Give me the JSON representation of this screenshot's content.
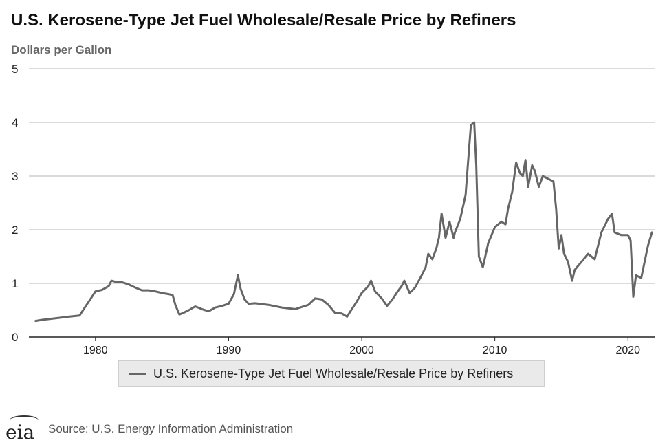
{
  "page": {
    "title": "U.S. Kerosene-Type Jet Fuel Wholesale/Resale Price by Refiners",
    "y_unit_label": "Dollars per Gallon",
    "legend_label": "U.S. Kerosene-Type Jet Fuel Wholesale/Resale Price by Refiners",
    "source": "Source: U.S. Energy Information Administration",
    "logo_text": "eia",
    "line_color": "#666666"
  },
  "chart_data": {
    "type": "line",
    "title": "U.S. Kerosene-Type Jet Fuel Wholesale/Resale Price by Refiners",
    "ylabel": "Dollars per Gallon",
    "xlabel": "",
    "ylim": [
      0,
      5
    ],
    "xlim": [
      1975,
      2022
    ],
    "yticks": [
      0,
      1,
      2,
      3,
      4,
      5
    ],
    "xticks": [
      1980,
      1990,
      2000,
      2010,
      2020
    ],
    "grid": "horizontal",
    "legend_position": "bottom",
    "series": [
      {
        "name": "U.S. Kerosene-Type Jet Fuel Wholesale/Resale Price by Refiners",
        "x": [
          1975.5,
          1976,
          1977,
          1978,
          1978.8,
          1979.2,
          1979.6,
          1980,
          1980.5,
          1981,
          1981.2,
          1981.5,
          1982,
          1982.5,
          1983,
          1983.5,
          1984,
          1984.5,
          1985,
          1985.5,
          1985.8,
          1986,
          1986.3,
          1986.6,
          1987,
          1987.5,
          1988,
          1988.5,
          1989,
          1989.5,
          1990,
          1990.4,
          1990.7,
          1990.9,
          1991.2,
          1991.5,
          1992,
          1993,
          1994,
          1995,
          1996,
          1996.5,
          1997,
          1997.5,
          1998,
          1998.5,
          1998.9,
          1999.2,
          1999.6,
          2000,
          2000.5,
          2000.7,
          2001,
          2001.5,
          2001.9,
          2002.3,
          2002.7,
          2003,
          2003.2,
          2003.6,
          2004,
          2004.5,
          2004.8,
          2005,
          2005.3,
          2005.6,
          2005.8,
          2006,
          2006.3,
          2006.6,
          2006.9,
          2007,
          2007.4,
          2007.8,
          2008,
          2008.2,
          2008.45,
          2008.6,
          2008.8,
          2008.95,
          2009.1,
          2009.5,
          2010,
          2010.5,
          2010.8,
          2011,
          2011.3,
          2011.6,
          2011.9,
          2012.1,
          2012.3,
          2012.5,
          2012.8,
          2013,
          2013.3,
          2013.6,
          2014,
          2014.4,
          2014.6,
          2014.8,
          2015,
          2015.2,
          2015.5,
          2015.8,
          2016,
          2016.5,
          2017,
          2017.5,
          2018,
          2018.5,
          2018.8,
          2019,
          2019.5,
          2020,
          2020.2,
          2020.4,
          2020.6,
          2021,
          2021.5,
          2021.8
        ],
        "y": [
          0.3,
          0.32,
          0.35,
          0.38,
          0.4,
          0.55,
          0.7,
          0.85,
          0.88,
          0.95,
          1.05,
          1.03,
          1.02,
          0.98,
          0.92,
          0.87,
          0.87,
          0.85,
          0.82,
          0.8,
          0.78,
          0.6,
          0.42,
          0.45,
          0.5,
          0.57,
          0.52,
          0.48,
          0.55,
          0.58,
          0.62,
          0.8,
          1.15,
          0.9,
          0.7,
          0.62,
          0.63,
          0.6,
          0.55,
          0.52,
          0.6,
          0.72,
          0.7,
          0.6,
          0.45,
          0.44,
          0.38,
          0.5,
          0.65,
          0.82,
          0.95,
          1.05,
          0.85,
          0.72,
          0.58,
          0.7,
          0.85,
          0.95,
          1.05,
          0.82,
          0.92,
          1.15,
          1.3,
          1.55,
          1.45,
          1.65,
          1.85,
          2.3,
          1.85,
          2.15,
          1.85,
          1.95,
          2.2,
          2.65,
          3.3,
          3.95,
          4.0,
          3.2,
          1.5,
          1.4,
          1.3,
          1.75,
          2.05,
          2.15,
          2.1,
          2.4,
          2.7,
          3.25,
          3.05,
          3.0,
          3.3,
          2.8,
          3.2,
          3.1,
          2.8,
          3.0,
          2.95,
          2.9,
          2.4,
          1.65,
          1.9,
          1.55,
          1.4,
          1.05,
          1.25,
          1.4,
          1.55,
          1.45,
          1.95,
          2.2,
          2.3,
          1.95,
          1.9,
          1.9,
          1.8,
          0.75,
          1.15,
          1.1,
          1.7,
          1.95
        ]
      }
    ]
  }
}
